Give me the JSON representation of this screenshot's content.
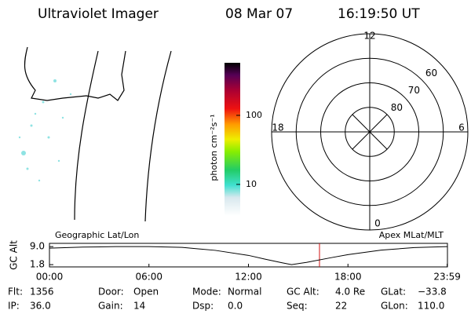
{
  "header": {
    "title": "Ultraviolet Imager",
    "date": "08 Mar 07",
    "time": "16:19:50 UT"
  },
  "colorbar": {
    "label": "photon cm⁻²s⁻¹",
    "scale": "log",
    "ylim": [
      3.5,
      577
    ],
    "yticks": [
      10,
      100
    ]
  },
  "polar": {
    "rlim": [
      90,
      50
    ],
    "rticks": [
      80,
      70,
      60
    ],
    "mlt_ticks": [
      12,
      18,
      6,
      0
    ]
  },
  "altitude": {
    "type": "line",
    "ylabel": "GC Alt",
    "left_label": "Geographic Lat/Lon",
    "right_label": "Apex MLat/MLT",
    "xlim": [
      0,
      24
    ],
    "ylim": [
      0.9,
      10.3
    ],
    "xticks": [
      {
        "value": 0,
        "label": "00:00"
      },
      {
        "value": 6,
        "label": "06:00"
      },
      {
        "value": 12,
        "label": "12:00"
      },
      {
        "value": 18,
        "label": "18:00"
      },
      {
        "value": 23.983,
        "label": "23:59"
      }
    ],
    "yticks": [
      1.8,
      {
        "value": 9,
        "label": "9.0"
      }
    ],
    "x": [
      0,
      2,
      4,
      6,
      8,
      10,
      12,
      13,
      14,
      14.6,
      15.5,
      17,
      18,
      20,
      22,
      24
    ],
    "values": [
      8.4,
      8.8,
      9.0,
      9.0,
      8.7,
      7.5,
      5.5,
      4.0,
      2.6,
      1.8,
      2.7,
      4.6,
      5.8,
      7.6,
      8.6,
      9.0
    ],
    "color": "#000000"
  },
  "footer": [
    [
      [
        "Flt:",
        "1356"
      ],
      [
        "IP:",
        "36.0"
      ]
    ],
    [
      [
        "Door:",
        "Open"
      ],
      [
        "Gain:",
        "14"
      ]
    ],
    [
      [
        "Mode:",
        "Normal"
      ],
      [
        "Dsp:",
        "0.0"
      ]
    ],
    [
      [
        "GC Alt:",
        "4.0 Re"
      ],
      [
        "Seq:",
        "22"
      ]
    ],
    [
      [
        "GLat:",
        "−33.8"
      ],
      [
        "GLon:",
        "110.0"
      ]
    ]
  ]
}
